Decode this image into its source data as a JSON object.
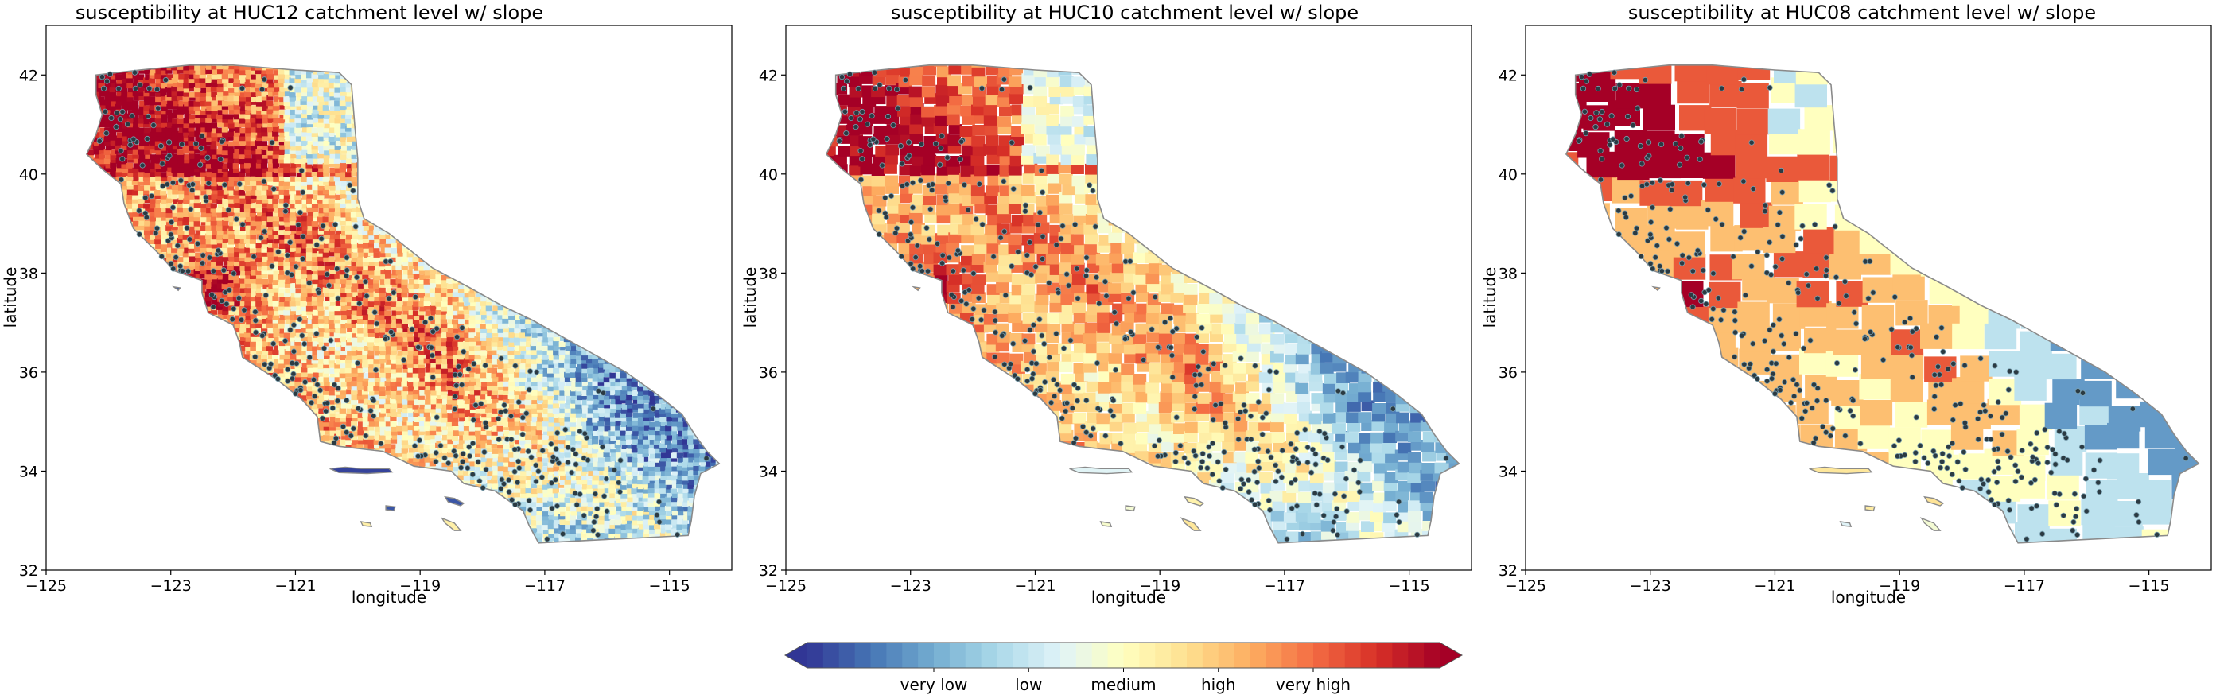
{
  "figure": {
    "colormap": "RdYlBu_r",
    "colormap_stops": [
      "#313695",
      "#4575b4",
      "#74add1",
      "#abd9e9",
      "#e0f3f8",
      "#ffffbf",
      "#fee090",
      "#fdae61",
      "#f46d43",
      "#d73027",
      "#a50026"
    ],
    "region_outline_color": "#8a8a8a",
    "point_color": "#2b3a42",
    "point_edge_color": "#7aa0b0"
  },
  "panels": [
    {
      "id": "huc12",
      "title": "susceptibility at HUC12 catchment level w/ slope",
      "xlabel": "longitude",
      "ylabel": "latitude",
      "xlim": [
        -125,
        -114
      ],
      "ylim": [
        32,
        43
      ],
      "xticks": [
        "−125",
        "−123",
        "−121",
        "−119",
        "−117",
        "−115"
      ],
      "yticks": [
        "32",
        "34",
        "36",
        "38",
        "40",
        "42"
      ],
      "granularity": "fine"
    },
    {
      "id": "huc10",
      "title": "susceptibility at HUC10 catchment level w/ slope",
      "xlabel": "longitude",
      "ylabel": "latitude",
      "xlim": [
        -125,
        -114
      ],
      "ylim": [
        32,
        43
      ],
      "xticks": [
        "−125",
        "−123",
        "−121",
        "−119",
        "−117",
        "−115"
      ],
      "yticks": [
        "32",
        "34",
        "36",
        "38",
        "40",
        "42"
      ],
      "granularity": "medium"
    },
    {
      "id": "huc08",
      "title": "susceptibility at HUC08 catchment level w/ slope",
      "xlabel": "longitude",
      "ylabel": "latitude",
      "xlim": [
        -125,
        -114
      ],
      "ylim": [
        32,
        43
      ],
      "xticks": [
        "−125",
        "−123",
        "−121",
        "−119",
        "−117",
        "−115"
      ],
      "yticks": [
        "32",
        "34",
        "36",
        "38",
        "40",
        "42"
      ],
      "granularity": "coarse"
    }
  ],
  "colorbar": {
    "labels": [
      "very low",
      "low",
      "medium",
      "high",
      "very high"
    ],
    "extend": "both"
  },
  "map": {
    "outline": [
      [
        -124.2,
        42.0
      ],
      [
        -123.5,
        42.1
      ],
      [
        -122.7,
        42.2
      ],
      [
        -122.0,
        42.2
      ],
      [
        -121.0,
        42.1
      ],
      [
        -120.3,
        42.05
      ],
      [
        -120.1,
        41.8
      ],
      [
        -120.05,
        41.0
      ],
      [
        -120.0,
        40.3
      ],
      [
        -120.0,
        39.5
      ],
      [
        -119.9,
        39.1
      ],
      [
        -119.5,
        38.8
      ],
      [
        -119.2,
        38.5
      ],
      [
        -118.8,
        38.1
      ],
      [
        -118.2,
        37.7
      ],
      [
        -117.7,
        37.35
      ],
      [
        -117.2,
        37.05
      ],
      [
        -116.7,
        36.7
      ],
      [
        -116.2,
        36.35
      ],
      [
        -115.7,
        36.0
      ],
      [
        -115.2,
        35.55
      ],
      [
        -114.8,
        35.15
      ],
      [
        -114.6,
        34.75
      ],
      [
        -114.4,
        34.4
      ],
      [
        -114.2,
        34.15
      ],
      [
        -114.5,
        33.95
      ],
      [
        -114.6,
        33.5
      ],
      [
        -114.65,
        33.0
      ],
      [
        -114.7,
        32.7
      ],
      [
        -115.5,
        32.65
      ],
      [
        -116.3,
        32.6
      ],
      [
        -117.1,
        32.55
      ],
      [
        -117.25,
        32.9
      ],
      [
        -117.35,
        33.2
      ],
      [
        -117.8,
        33.6
      ],
      [
        -118.3,
        33.75
      ],
      [
        -118.5,
        34.0
      ],
      [
        -119.1,
        34.1
      ],
      [
        -119.6,
        34.4
      ],
      [
        -120.3,
        34.5
      ],
      [
        -120.6,
        34.6
      ],
      [
        -120.65,
        35.1
      ],
      [
        -120.9,
        35.45
      ],
      [
        -121.3,
        35.85
      ],
      [
        -121.85,
        36.3
      ],
      [
        -121.9,
        36.6
      ],
      [
        -122.0,
        36.95
      ],
      [
        -122.4,
        37.2
      ],
      [
        -122.5,
        37.6
      ],
      [
        -122.5,
        37.85
      ],
      [
        -122.95,
        38.05
      ],
      [
        -123.2,
        38.4
      ],
      [
        -123.6,
        38.9
      ],
      [
        -123.75,
        39.4
      ],
      [
        -123.8,
        39.8
      ],
      [
        -124.1,
        40.1
      ],
      [
        -124.35,
        40.4
      ],
      [
        -124.2,
        40.8
      ],
      [
        -124.1,
        41.2
      ],
      [
        -124.2,
        41.6
      ]
    ],
    "islands": [
      [
        [
          -120.45,
          34.05
        ],
        [
          -120.2,
          34.08
        ],
        [
          -119.95,
          34.05
        ],
        [
          -119.5,
          34.05
        ],
        [
          -119.45,
          33.98
        ],
        [
          -119.85,
          33.95
        ],
        [
          -120.3,
          33.97
        ]
      ],
      [
        [
          -118.6,
          33.48
        ],
        [
          -118.45,
          33.45
        ],
        [
          -118.3,
          33.35
        ],
        [
          -118.35,
          33.3
        ],
        [
          -118.55,
          33.38
        ]
      ],
      [
        [
          -118.65,
          33.05
        ],
        [
          -118.45,
          32.95
        ],
        [
          -118.35,
          32.8
        ],
        [
          -118.45,
          32.8
        ],
        [
          -118.6,
          32.95
        ]
      ],
      [
        [
          -119.55,
          33.3
        ],
        [
          -119.4,
          33.28
        ],
        [
          -119.42,
          33.2
        ],
        [
          -119.55,
          33.22
        ]
      ],
      [
        [
          -119.95,
          32.98
        ],
        [
          -119.8,
          32.95
        ],
        [
          -119.78,
          32.88
        ],
        [
          -119.92,
          32.9
        ]
      ],
      [
        [
          -122.95,
          37.72
        ],
        [
          -122.85,
          37.7
        ],
        [
          -122.88,
          37.65
        ]
      ]
    ]
  }
}
